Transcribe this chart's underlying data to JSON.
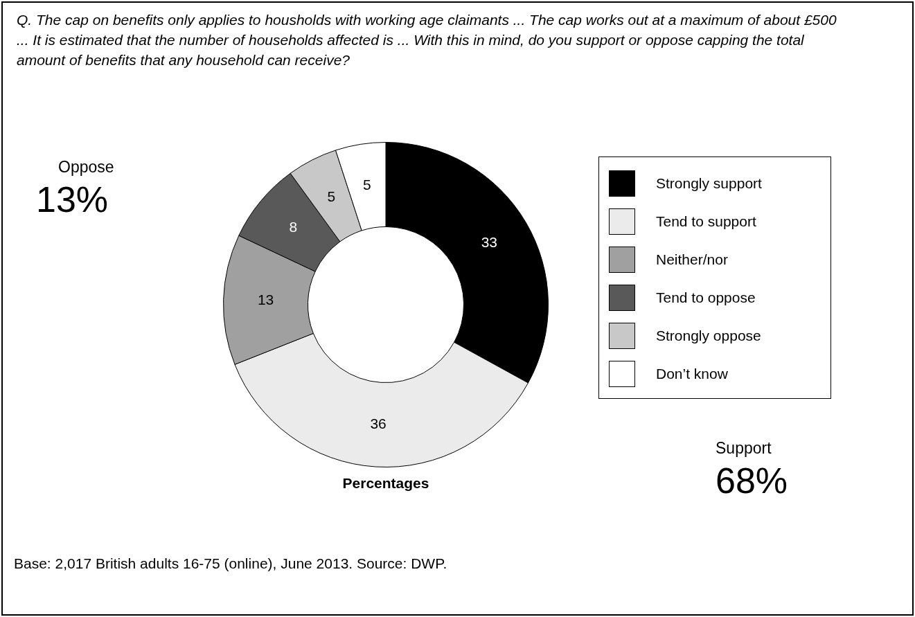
{
  "chart_data": {
    "type": "donut",
    "title": "Q.  The cap on benefits only applies to housholds with working age claimants ... The cap works out at a maximum of about £500 ... It is estimated that the number of households affected is ... With this in mind, do you support or oppose capping the total amount of benefits that any household can receive?",
    "xlabel": "Percentages",
    "categories": [
      "Strongly support",
      "Tend to support",
      "Neither/nor",
      "Tend to oppose",
      "Strongly oppose",
      "Don’t know"
    ],
    "values": [
      33,
      36,
      13,
      8,
      5,
      5
    ],
    "colors": [
      "#000000",
      "#ebebeb",
      "#a0a0a0",
      "#595959",
      "#c8c8c8",
      "#ffffff"
    ],
    "data_labels": true,
    "legend": "right",
    "annotations": [
      "Oppose",
      "13%",
      "Support",
      "68%",
      "Base: 2,017 British adults 16-75 (online), June 2013. Source: DWP."
    ]
  }
}
